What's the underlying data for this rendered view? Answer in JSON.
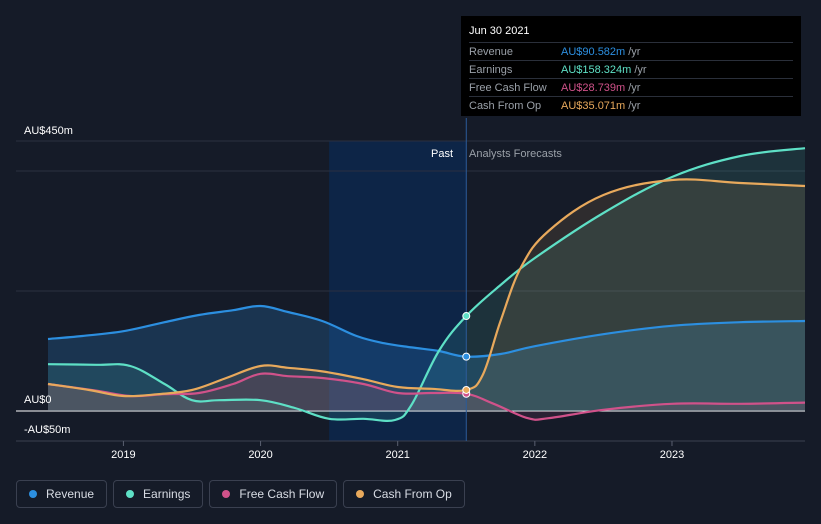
{
  "tooltip": {
    "date": "Jun 30 2021",
    "rows": [
      {
        "label": "Revenue",
        "value": "AU$90.582m",
        "unit": "/yr",
        "color": "#2c8fe0"
      },
      {
        "label": "Earnings",
        "value": "AU$158.324m",
        "unit": "/yr",
        "color": "#5ee0c6"
      },
      {
        "label": "Free Cash Flow",
        "value": "AU$28.739m",
        "unit": "/yr",
        "color": "#d0528a"
      },
      {
        "label": "Cash From Op",
        "value": "AU$35.071m",
        "unit": "/yr",
        "color": "#e8a95c"
      }
    ]
  },
  "legend": [
    {
      "label": "Revenue",
      "color": "#2c8fe0"
    },
    {
      "label": "Earnings",
      "color": "#5ee0c6"
    },
    {
      "label": "Free Cash Flow",
      "color": "#d0528a"
    },
    {
      "label": "Cash From Op",
      "color": "#e8a95c"
    }
  ],
  "chart_data": {
    "type": "line",
    "y_top_label": "AU$450m",
    "y_zero_label": "AU$0",
    "y_bottom_label": "-AU$50m",
    "ylim": [
      -50,
      450
    ],
    "xlim": [
      2018.45,
      2023.97
    ],
    "x_ticks": [
      2019,
      2020,
      2021,
      2022,
      2023
    ],
    "x_tick_labels": [
      "2019",
      "2020",
      "2021",
      "2022",
      "2023"
    ],
    "past_label": "Past",
    "forecast_label": "Analysts Forecasts",
    "past_shade_start": 2020.5,
    "divider_x": 2021.5,
    "series": [
      {
        "name": "Revenue",
        "color": "#2c8fe0",
        "x": [
          2018.45,
          2018.7,
          2019.0,
          2019.3,
          2019.55,
          2019.8,
          2020.0,
          2020.2,
          2020.45,
          2020.7,
          2020.9,
          2021.1,
          2021.3,
          2021.5,
          2021.75,
          2022.0,
          2022.5,
          2023.0,
          2023.5,
          2023.97
        ],
        "y": [
          120,
          125,
          133,
          148,
          160,
          168,
          175,
          165,
          150,
          125,
          113,
          106,
          100,
          90.6,
          95,
          108,
          128,
          142,
          148,
          150
        ]
      },
      {
        "name": "Earnings",
        "color": "#5ee0c6",
        "x": [
          2018.45,
          2018.8,
          2019.05,
          2019.3,
          2019.5,
          2019.7,
          2020.0,
          2020.25,
          2020.5,
          2020.75,
          2020.98,
          2021.1,
          2021.3,
          2021.5,
          2021.75,
          2022.0,
          2022.5,
          2023.0,
          2023.5,
          2023.97
        ],
        "y": [
          78,
          77,
          75,
          45,
          18,
          18,
          18,
          5,
          -13,
          -13,
          -15,
          10,
          100,
          158.3,
          210,
          255,
          330,
          390,
          425,
          438
        ]
      },
      {
        "name": "Free Cash Flow",
        "color": "#d0528a",
        "x": [
          2018.45,
          2018.8,
          2019.05,
          2019.3,
          2019.55,
          2019.8,
          2020.0,
          2020.2,
          2020.45,
          2020.75,
          2021.0,
          2021.25,
          2021.5,
          2021.7,
          2021.95,
          2022.1,
          2022.5,
          2023.0,
          2023.5,
          2023.97
        ],
        "y": [
          45,
          34,
          25,
          28,
          30,
          45,
          62,
          58,
          55,
          45,
          30,
          30,
          28.7,
          12,
          -12,
          -12,
          2,
          12,
          12,
          14
        ]
      },
      {
        "name": "Cash From Op",
        "color": "#e8a95c",
        "x": [
          2018.45,
          2018.75,
          2019.0,
          2019.25,
          2019.5,
          2019.75,
          2020.0,
          2020.2,
          2020.45,
          2020.75,
          2021.0,
          2021.25,
          2021.5,
          2021.62,
          2021.75,
          2021.9,
          2022.1,
          2022.5,
          2023.0,
          2023.5,
          2023.97
        ],
        "y": [
          45,
          35,
          25,
          28,
          35,
          55,
          75,
          72,
          66,
          53,
          40,
          37,
          35.1,
          60,
          150,
          240,
          300,
          360,
          385,
          380,
          375
        ]
      }
    ]
  }
}
